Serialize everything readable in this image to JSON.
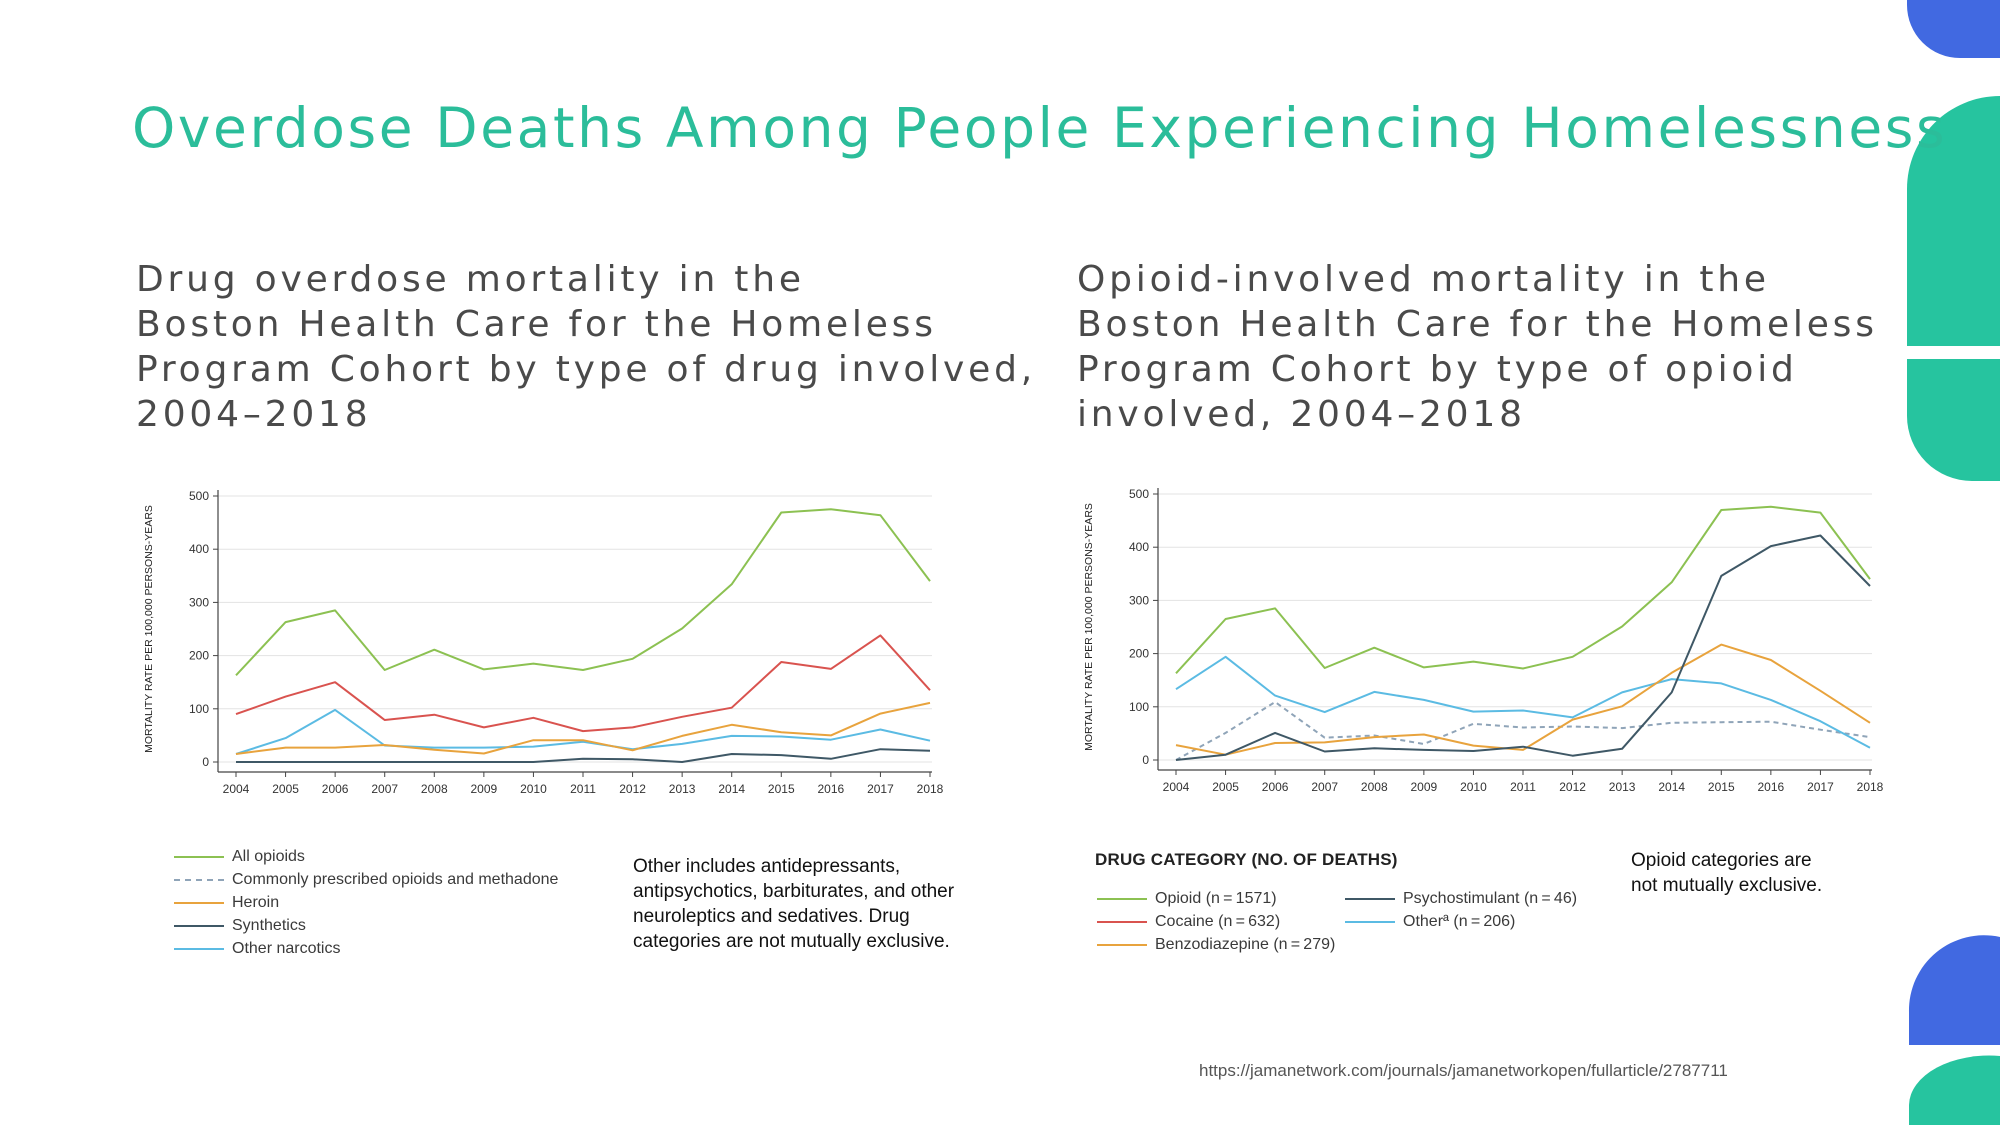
{
  "slide": {
    "title": "Overdose Deaths Among People Experiencing Homelessness",
    "subtitle_left": [
      "Drug overdose mortality in the",
      "Boston Health Care for the Homeless",
      "Program Cohort by type of drug involved,",
      "2004–2018"
    ],
    "subtitle_right": [
      "Opioid-involved mortality in the",
      "Boston Health Care for the Homeless",
      "Program Cohort by type of opioid",
      "involved, 2004–2018"
    ],
    "note_left": [
      "Other includes antidepressants,",
      "antipsychotics, barbiturates, and other",
      "neuroleptics and sedatives. Drug",
      "categories are not mutually exclusive."
    ],
    "note_right": [
      "Opioid categories are",
      "not mutually exclusive."
    ],
    "legend_right_title": "DRUG CATEGORY (NO. OF DEATHS)",
    "source": "https://jamanetwork.com/journals/jamanetworkopen/fullarticle/2787711",
    "accent_color": "#2bbd9a",
    "decor_blue": "#4169e1",
    "decor_green": "#26c49f"
  },
  "legend_left": [
    {
      "label": "All opioids",
      "color": "#8cc152",
      "dashed": false
    },
    {
      "label": "Commonly prescribed opioids and methadone",
      "color": "#8fa4b8",
      "dashed": true
    },
    {
      "label": "Heroin",
      "color": "#e8a33d",
      "dashed": false
    },
    {
      "label": "Synthetics",
      "color": "#3f5866",
      "dashed": false
    },
    {
      "label": "Other narcotics",
      "color": "#5bbbe3",
      "dashed": false
    }
  ],
  "legend_right": [
    {
      "label": "Opioid (n = 1571)",
      "color": "#8cc152",
      "dashed": false
    },
    {
      "label": "Cocaine (n = 632)",
      "color": "#d9534f",
      "dashed": false
    },
    {
      "label": "Benzodiazepine (n = 279)",
      "color": "#e8a33d",
      "dashed": false
    },
    {
      "label": "Psychostimulant (n = 46)",
      "color": "#3f5866",
      "dashed": false
    },
    {
      "label": "Otherª (n = 206)",
      "color": "#5bbbe3",
      "dashed": false
    }
  ],
  "chart_data": [
    {
      "type": "line",
      "title": "Drug overdose mortality in the Boston Health Care for the Homeless Program Cohort by type of drug involved, 2004–2018",
      "xlabel": "",
      "ylabel": "MORTALITY RATE PER 100,000 PERSONS-YEARS",
      "x": [
        "2004",
        "2005",
        "2006",
        "2007",
        "2008",
        "2009",
        "2010",
        "2011",
        "2012",
        "2013",
        "2014",
        "2015",
        "2016",
        "2017",
        "2018"
      ],
      "ylim": [
        0,
        500
      ],
      "yticks": [
        0,
        100,
        200,
        300,
        400,
        500
      ],
      "grid": true,
      "series": [
        {
          "name": "Green series",
          "color": "#8cc152",
          "dashed": false,
          "values": [
            163,
            263,
            285,
            173,
            211,
            174,
            185,
            173,
            194,
            251,
            334,
            469,
            475,
            464,
            340
          ]
        },
        {
          "name": "Red series",
          "color": "#d9534f",
          "dashed": false,
          "values": [
            90,
            123,
            150,
            79,
            89,
            65,
            83,
            58,
            65,
            85,
            102,
            188,
            175,
            238,
            135
          ]
        },
        {
          "name": "Heroin",
          "color": "#e8a33d",
          "dashed": false,
          "values": [
            15,
            27,
            27,
            32,
            23,
            16,
            41,
            41,
            22,
            49,
            70,
            56,
            50,
            91,
            111
          ]
        },
        {
          "name": "Other narcotics",
          "color": "#5bbbe3",
          "dashed": false,
          "values": [
            15,
            45,
            98,
            31,
            27,
            27,
            29,
            38,
            24,
            34,
            49,
            48,
            42,
            61,
            40
          ]
        },
        {
          "name": "Synthetics",
          "color": "#3f5866",
          "dashed": false,
          "values": [
            0,
            0,
            0,
            0,
            0,
            0,
            0,
            6,
            5,
            0,
            15,
            13,
            6,
            24,
            21
          ]
        }
      ]
    },
    {
      "type": "line",
      "title": "Opioid-involved mortality in the Boston Health Care for the Homeless Program Cohort by type of opioid involved, 2004–2018",
      "xlabel": "",
      "ylabel": "MORTALITY RATE PER 100,000 PERSONS-YEARS",
      "x": [
        "2004",
        "2005",
        "2006",
        "2007",
        "2008",
        "2009",
        "2010",
        "2011",
        "2012",
        "2013",
        "2014",
        "2015",
        "2016",
        "2017",
        "2018"
      ],
      "ylim": [
        0,
        500
      ],
      "yticks": [
        0,
        100,
        200,
        300,
        400,
        500
      ],
      "grid": true,
      "series": [
        {
          "name": "Green series",
          "color": "#8cc152",
          "dashed": false,
          "values": [
            163,
            265,
            285,
            173,
            211,
            174,
            185,
            172,
            194,
            251,
            334,
            470,
            476,
            465,
            340
          ]
        },
        {
          "name": "Dark series",
          "color": "#3f5866",
          "dashed": false,
          "values": [
            0,
            10,
            51,
            16,
            22,
            19,
            17,
            25,
            8,
            21,
            127,
            346,
            402,
            422,
            327
          ]
        },
        {
          "name": "Orange series",
          "color": "#e8a33d",
          "dashed": false,
          "values": [
            28,
            10,
            32,
            33,
            43,
            48,
            27,
            19,
            76,
            101,
            164,
            217,
            188,
            130,
            70
          ]
        },
        {
          "name": "Blue series",
          "color": "#5bbbe3",
          "dashed": false,
          "values": [
            133,
            194,
            121,
            90,
            128,
            113,
            91,
            93,
            80,
            127,
            152,
            144,
            113,
            73,
            23
          ]
        },
        {
          "name": "Dashed series",
          "color": "#8fa4b8",
          "dashed": true,
          "values": [
            0,
            51,
            109,
            42,
            46,
            30,
            68,
            61,
            63,
            60,
            70,
            71,
            72,
            57,
            43
          ]
        }
      ]
    }
  ]
}
